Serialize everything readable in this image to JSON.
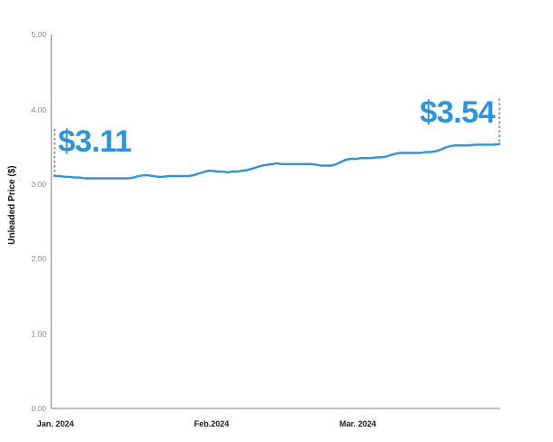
{
  "chart_data": {
    "type": "line",
    "title": "",
    "ylabel": "Unleaded Price ($)",
    "xlabel": "",
    "ylim": [
      0.0,
      5.0
    ],
    "grid": false,
    "legend": "none",
    "y_ticks": [
      "5.00",
      "4.00",
      "3.00",
      "2.00",
      "1.00",
      "0.00"
    ],
    "y_tick_values": [
      5.0,
      4.0,
      3.0,
      2.0,
      1.0,
      0.0
    ],
    "x_tick_labels": [
      "Jan. 2024",
      "Feb.2024",
      "Mar. 2024"
    ],
    "x_range_days": 91,
    "line_color": "#3492d4",
    "annotation_color": "#2e93d8",
    "axis_color": "#9a9a9a",
    "dash_line_color": "#333333",
    "annotations": [
      {
        "label": "$3.11",
        "position": "start",
        "value": 3.11
      },
      {
        "label": "$3.54",
        "position": "end",
        "value": 3.54
      }
    ],
    "series": [
      {
        "name": "Unleaded Price",
        "values": [
          3.11,
          3.11,
          3.1,
          3.1,
          3.09,
          3.09,
          3.08,
          3.08,
          3.08,
          3.08,
          3.08,
          3.08,
          3.08,
          3.08,
          3.08,
          3.08,
          3.09,
          3.11,
          3.12,
          3.12,
          3.11,
          3.1,
          3.1,
          3.11,
          3.11,
          3.11,
          3.11,
          3.11,
          3.12,
          3.14,
          3.16,
          3.18,
          3.18,
          3.17,
          3.17,
          3.16,
          3.17,
          3.17,
          3.18,
          3.19,
          3.21,
          3.23,
          3.25,
          3.26,
          3.27,
          3.28,
          3.27,
          3.27,
          3.27,
          3.27,
          3.27,
          3.27,
          3.27,
          3.26,
          3.25,
          3.25,
          3.25,
          3.27,
          3.3,
          3.33,
          3.34,
          3.34,
          3.35,
          3.35,
          3.35,
          3.36,
          3.36,
          3.37,
          3.39,
          3.41,
          3.42,
          3.42,
          3.42,
          3.42,
          3.42,
          3.43,
          3.43,
          3.44,
          3.46,
          3.49,
          3.51,
          3.52,
          3.52,
          3.52,
          3.52,
          3.53,
          3.53,
          3.53,
          3.53,
          3.53,
          3.54
        ]
      }
    ]
  }
}
